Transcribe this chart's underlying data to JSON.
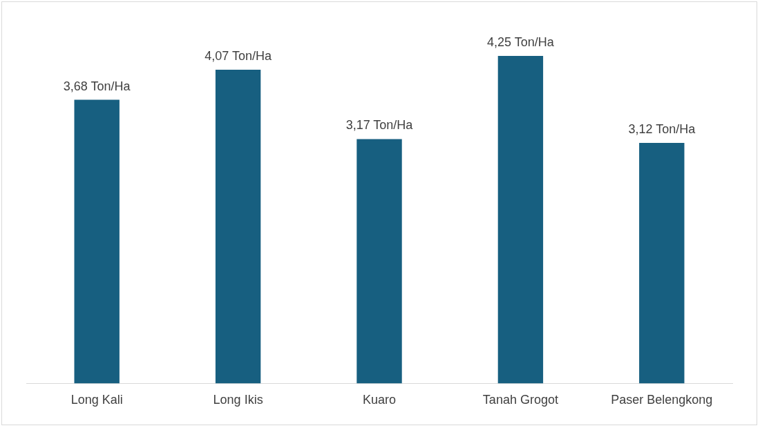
{
  "chart_data": {
    "type": "bar",
    "categories": [
      "Long Kali",
      "Long Ikis",
      "Kuaro",
      "Tanah Grogot",
      "Paser Belengkong"
    ],
    "values": [
      3.68,
      4.07,
      3.17,
      4.25,
      3.12
    ],
    "color": "#175f80",
    "value_labels": [
      "3,68 Ton/Ha",
      "4,07 Ton/Ha",
      "3,17 Ton/Ha",
      "4,25 Ton/Ha",
      "3,12 Ton/Ha"
    ],
    "grid": false,
    "legend": false
  }
}
